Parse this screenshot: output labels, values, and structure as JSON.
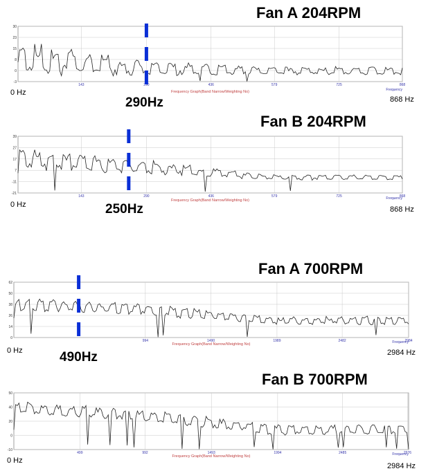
{
  "chart_data": [
    {
      "type": "line",
      "title": "Fan A 204RPM",
      "caption": "Frequency Graph(Band Narrow/Weighting No)",
      "xaxis_word": "Frequency",
      "x_start_label": "0 Hz",
      "x_end_label": "868 Hz",
      "peak_label": "290Hz",
      "peak_x": 290,
      "xlim": [
        0,
        868
      ],
      "ylim": [
        -3,
        30
      ],
      "yticks": [
        "30",
        "23",
        "15",
        "8",
        "0",
        "-3"
      ],
      "xticks": [
        "143",
        "290",
        "436",
        "579",
        "725",
        "868"
      ],
      "xtick_values": [
        143,
        290,
        436,
        579,
        725,
        868
      ],
      "series": [
        {
          "seed": 11,
          "base": [
            10,
            4,
            3
          ],
          "amp": [
            11,
            5,
            2.5
          ],
          "period": 10,
          "drops": 3
        }
      ]
    },
    {
      "type": "line",
      "title": "Fan B 204RPM",
      "caption": "Frequency Graph(Band Narrow/Weighting No)",
      "xaxis_word": "Frequency",
      "x_start_label": "0 Hz",
      "x_end_label": "868 Hz",
      "peak_label": "250Hz",
      "peak_x": 250,
      "xlim": [
        0,
        868
      ],
      "ylim": [
        -21,
        39
      ],
      "yticks": [
        "39",
        "27",
        "17",
        "7",
        "-11",
        "-21"
      ],
      "xticks": [
        "143",
        "290",
        "436",
        "579",
        "725",
        "868"
      ],
      "xtick_values": [
        143,
        290,
        436,
        579,
        725,
        868
      ],
      "series": [
        {
          "seed": 23,
          "base": [
            14,
            5,
            -5
          ],
          "amp": [
            13,
            8,
            3
          ],
          "period": 9,
          "drops": 5
        }
      ]
    },
    {
      "type": "line",
      "title": "Fan A 700RPM",
      "caption": "Frequency Graph(Band Narrow/Weighting No)",
      "xaxis_word": "Frequency",
      "x_start_label": "0 Hz",
      "x_end_label": "2984 Hz",
      "peak_label": "490Hz",
      "peak_x": 490,
      "xlim": [
        0,
        2984
      ],
      "ylim": [
        0,
        62
      ],
      "yticks": [
        "62",
        "50",
        "38",
        "26",
        "14",
        "0"
      ],
      "xticks": [
        "994",
        "1490",
        "1989",
        "2482",
        "2984"
      ],
      "xtick_values": [
        994,
        1490,
        1989,
        2482,
        2984
      ],
      "series": [
        {
          "seed": 37,
          "base": [
            36,
            30,
            18
          ],
          "amp": [
            8,
            7,
            5
          ],
          "period": 7,
          "drops": 7
        }
      ]
    },
    {
      "type": "line",
      "title": "Fan B 700RPM",
      "caption": "Frequency Graph(Band Narrow/Weighting No)",
      "xaxis_word": "Frequency",
      "x_start_label": "0 Hz",
      "x_end_label": "2984 Hz",
      "peak_label": "",
      "xlim": [
        0,
        2984
      ],
      "ylim": [
        -10,
        50
      ],
      "yticks": [
        "50",
        "40",
        "20",
        "0",
        "-10"
      ],
      "xticks": [
        "499",
        "992",
        "1493",
        "1994",
        "2485",
        "2976"
      ],
      "xtick_values": [
        499,
        992,
        1493,
        1994,
        2485,
        2976
      ],
      "series": [
        {
          "seed": 51,
          "base": [
            33,
            25,
            10
          ],
          "amp": [
            7,
            7,
            6
          ],
          "period": 8,
          "drops": 8
        }
      ]
    }
  ],
  "colors": {
    "marker": "#0a2fd6",
    "line": "#222222",
    "grid": "#c8c8c8",
    "frame": "#888888"
  }
}
